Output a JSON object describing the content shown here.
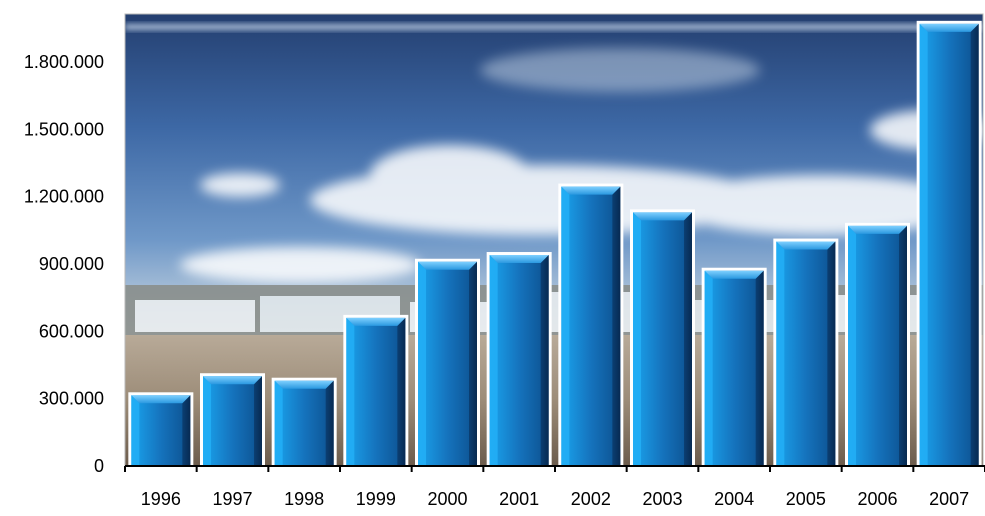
{
  "chart_data": {
    "type": "bar",
    "categories": [
      "1996",
      "1997",
      "1998",
      "1999",
      "2000",
      "2001",
      "2002",
      "2003",
      "2004",
      "2005",
      "2006",
      "2007"
    ],
    "values": [
      315000,
      400000,
      380000,
      660000,
      910000,
      940000,
      1245000,
      1130000,
      870000,
      1000000,
      1070000,
      1970000
    ],
    "title": "",
    "xlabel": "",
    "ylabel": "",
    "ylim": [
      0,
      2000000
    ],
    "yticks": [
      0,
      300000,
      600000,
      900000,
      1200000,
      1500000,
      1800000
    ],
    "ytick_labels": [
      "0",
      "300.000",
      "600.000",
      "900.000",
      "1.200.000",
      "1.500.000",
      "1.800.000"
    ],
    "grid": false,
    "legend": "none",
    "background": "beach photo with sky and clouds",
    "bar_color": "#1f7fc4",
    "bar_border_color": "#ffffff"
  }
}
